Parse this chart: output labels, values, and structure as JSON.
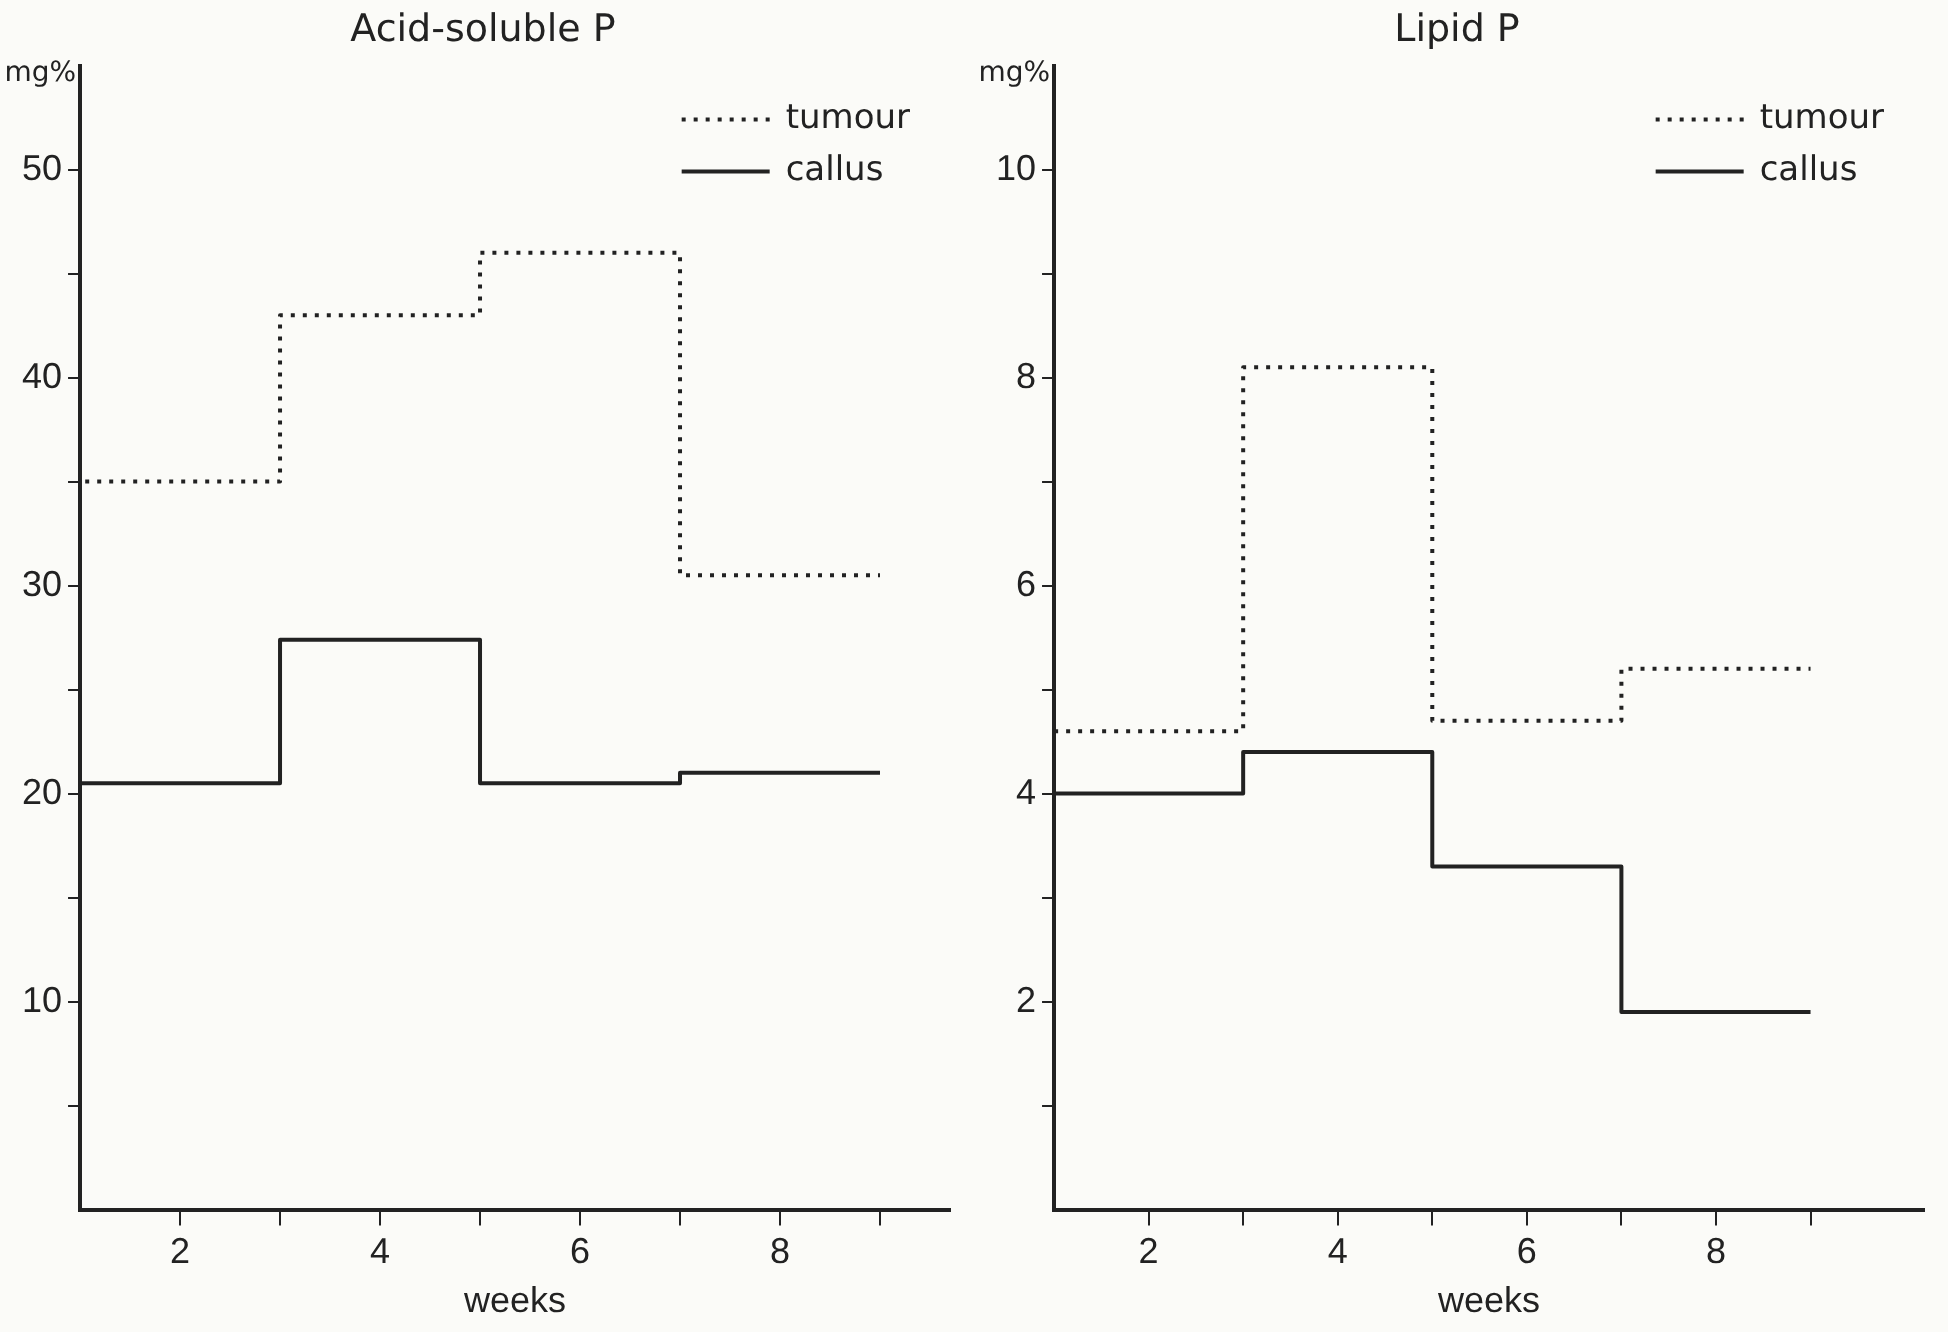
{
  "chart_data": [
    {
      "type": "step",
      "title": "Acid-soluble P",
      "xlabel": "weeks",
      "ylabel": "mg%",
      "x": [
        1,
        3,
        5,
        7,
        9
      ],
      "series": [
        {
          "name": "tumour",
          "color": "#222222",
          "line_style": "dotted",
          "values": [
            35,
            43,
            46,
            30.5,
            30.5
          ]
        },
        {
          "name": "callus",
          "color": "#222222",
          "line_style": "solid",
          "values": [
            20.5,
            27.4,
            20.5,
            21,
            21
          ]
        }
      ],
      "xlim": [
        1,
        9.7
      ],
      "xticks": [
        {
          "value": 2,
          "label": "2"
        },
        {
          "value": 3,
          "label": null
        },
        {
          "value": 4,
          "label": "4"
        },
        {
          "value": 5,
          "label": null
        },
        {
          "value": 6,
          "label": "6"
        },
        {
          "value": 7,
          "label": null
        },
        {
          "value": 8,
          "label": "8"
        },
        {
          "value": 9,
          "label": null
        }
      ],
      "ylim": [
        0,
        55
      ],
      "yticks": [
        {
          "value": 5,
          "label": null
        },
        10,
        {
          "value": 15,
          "label": null
        },
        20,
        {
          "value": 25,
          "label": null
        },
        30,
        {
          "value": 35,
          "label": null
        },
        40,
        {
          "value": 45,
          "label": null
        },
        50
      ],
      "grid": false,
      "legend": "top right",
      "marker": "none"
    },
    {
      "type": "step",
      "title": "Lipid P",
      "xlabel": "weeks",
      "ylabel": "mg%",
      "x": [
        1,
        3,
        5,
        7,
        9
      ],
      "series": [
        {
          "name": "tumour",
          "color": "#222222",
          "line_style": "dotted",
          "values": [
            4.6,
            8.1,
            4.7,
            5.2,
            5.2
          ]
        },
        {
          "name": "callus",
          "color": "#222222",
          "line_style": "solid",
          "values": [
            4,
            4.4,
            3.3,
            1.9,
            1.9
          ]
        }
      ],
      "xlim": [
        1,
        10.2
      ],
      "xticks": [
        {
          "value": 2,
          "label": "2"
        },
        {
          "value": 3,
          "label": null
        },
        {
          "value": 4,
          "label": "4"
        },
        {
          "value": 5,
          "label": null
        },
        {
          "value": 6,
          "label": "6"
        },
        {
          "value": 7,
          "label": null
        },
        {
          "value": 8,
          "label": "8"
        },
        {
          "value": 9,
          "label": null
        }
      ],
      "ylim": [
        0,
        11
      ],
      "yticks": [
        {
          "value": 1,
          "label": null
        },
        2,
        {
          "value": 3,
          "label": null
        },
        4,
        {
          "value": 5,
          "label": null
        },
        6,
        {
          "value": 7,
          "label": null
        },
        8,
        {
          "value": 9,
          "label": null
        },
        10
      ],
      "grid": false,
      "legend": "top right",
      "marker": "none"
    }
  ]
}
